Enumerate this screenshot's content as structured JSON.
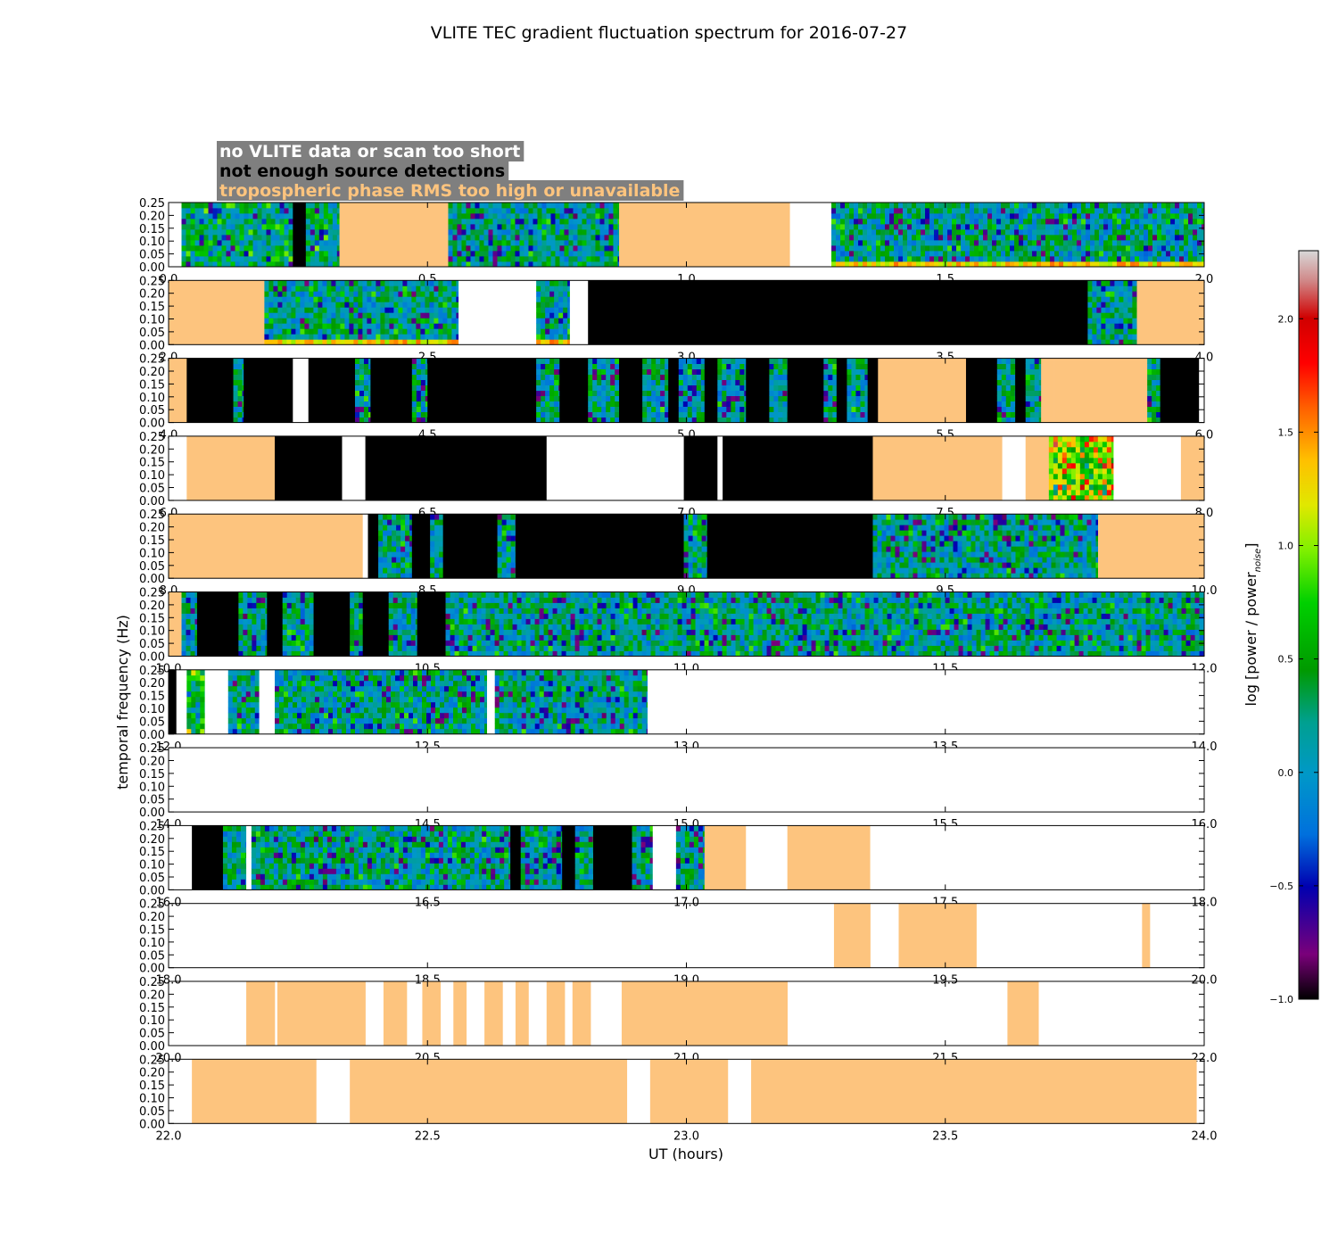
{
  "chart_data": {
    "type": "heatmap",
    "title": "VLITE TEC gradient fluctuation spectrum for 2016-07-27",
    "xlabel": "UT (hours)",
    "ylabel": "temporal frequency (Hz)",
    "ylim": [
      0.0,
      0.25
    ],
    "yticks": [
      "0.00",
      "0.05",
      "0.10",
      "0.15",
      "0.20",
      "0.25"
    ],
    "panel_hours": 2,
    "colorbar": {
      "label": "log [power / power",
      "label_sub": "noise",
      "label_end": "]",
      "range": [
        -1.0,
        2.3
      ],
      "ticks": [
        "2.0",
        "1.5",
        "1.0",
        "0.5",
        "0.0",
        "−0.5",
        "−1.0"
      ],
      "tick_values": [
        2.0,
        1.5,
        1.0,
        0.5,
        0.0,
        -0.5,
        -1.0
      ]
    },
    "legend": [
      {
        "label": "no VLITE data or scan too short",
        "text_color": "#ffffff"
      },
      {
        "label": "not enough source detections",
        "text_color": "#000000"
      },
      {
        "label": "tropospheric phase RMS too high or unavailable",
        "text_color": "#fdc47e"
      }
    ],
    "category_colors": {
      "no_data": "#ffffff",
      "few_detections": "#000000",
      "tropo": "#fdc47e"
    },
    "panels": [
      {
        "xlim": [
          0.0,
          2.0
        ],
        "xticks": [
          "0.0",
          "0.5",
          "1.0",
          "1.5",
          "2.0"
        ],
        "segments": [
          {
            "start": 0.0,
            "end": 0.025,
            "status": "no_data"
          },
          {
            "start": 0.025,
            "end": 0.24,
            "status": "data",
            "hot": 0.12
          },
          {
            "start": 0.24,
            "end": 0.265,
            "status": "few_detections"
          },
          {
            "start": 0.265,
            "end": 0.33,
            "status": "data",
            "hot": 0.12
          },
          {
            "start": 0.33,
            "end": 0.54,
            "status": "tropo"
          },
          {
            "start": 0.54,
            "end": 0.87,
            "status": "data"
          },
          {
            "start": 0.87,
            "end": 1.2,
            "status": "tropo"
          },
          {
            "start": 1.2,
            "end": 1.28,
            "status": "no_data"
          },
          {
            "start": 1.28,
            "end": 2.0,
            "status": "data",
            "bottom_band": true
          }
        ]
      },
      {
        "xlim": [
          2.0,
          4.0
        ],
        "xticks": [
          "2.0",
          "2.5",
          "3.0",
          "3.5",
          "4.0"
        ],
        "segments": [
          {
            "start": 2.0,
            "end": 2.185,
            "status": "tropo"
          },
          {
            "start": 2.185,
            "end": 2.56,
            "status": "data",
            "bottom_band": true
          },
          {
            "start": 2.56,
            "end": 2.71,
            "status": "no_data"
          },
          {
            "start": 2.71,
            "end": 2.775,
            "status": "data",
            "bottom_band": true
          },
          {
            "start": 2.775,
            "end": 2.81,
            "status": "no_data"
          },
          {
            "start": 2.81,
            "end": 3.775,
            "status": "few_detections"
          },
          {
            "start": 3.775,
            "end": 3.87,
            "status": "data"
          },
          {
            "start": 3.87,
            "end": 4.0,
            "status": "tropo"
          }
        ]
      },
      {
        "xlim": [
          4.0,
          6.0
        ],
        "xticks": [
          "4.0",
          "4.5",
          "5.0",
          "5.5",
          "6.0"
        ],
        "segments": [
          {
            "start": 4.0,
            "end": 4.035,
            "status": "tropo"
          },
          {
            "start": 4.035,
            "end": 4.125,
            "status": "few_detections"
          },
          {
            "start": 4.125,
            "end": 4.145,
            "status": "data"
          },
          {
            "start": 4.145,
            "end": 4.24,
            "status": "few_detections"
          },
          {
            "start": 4.24,
            "end": 4.27,
            "status": "no_data"
          },
          {
            "start": 4.27,
            "end": 4.36,
            "status": "few_detections"
          },
          {
            "start": 4.36,
            "end": 4.39,
            "status": "data"
          },
          {
            "start": 4.39,
            "end": 4.47,
            "status": "few_detections"
          },
          {
            "start": 4.47,
            "end": 4.5,
            "status": "data"
          },
          {
            "start": 4.5,
            "end": 4.71,
            "status": "few_detections"
          },
          {
            "start": 4.71,
            "end": 4.755,
            "status": "data"
          },
          {
            "start": 4.755,
            "end": 4.81,
            "status": "few_detections"
          },
          {
            "start": 4.81,
            "end": 4.87,
            "status": "data"
          },
          {
            "start": 4.87,
            "end": 4.915,
            "status": "few_detections"
          },
          {
            "start": 4.915,
            "end": 4.965,
            "status": "data"
          },
          {
            "start": 4.965,
            "end": 4.985,
            "status": "few_detections"
          },
          {
            "start": 4.985,
            "end": 5.035,
            "status": "data"
          },
          {
            "start": 5.035,
            "end": 5.06,
            "status": "few_detections"
          },
          {
            "start": 5.06,
            "end": 5.115,
            "status": "data"
          },
          {
            "start": 5.115,
            "end": 5.16,
            "status": "few_detections"
          },
          {
            "start": 5.16,
            "end": 5.195,
            "status": "data"
          },
          {
            "start": 5.195,
            "end": 5.265,
            "status": "few_detections"
          },
          {
            "start": 5.265,
            "end": 5.29,
            "status": "data"
          },
          {
            "start": 5.29,
            "end": 5.31,
            "status": "few_detections"
          },
          {
            "start": 5.31,
            "end": 5.35,
            "status": "data"
          },
          {
            "start": 5.35,
            "end": 5.37,
            "status": "few_detections"
          },
          {
            "start": 5.37,
            "end": 5.54,
            "status": "tropo"
          },
          {
            "start": 5.54,
            "end": 5.6,
            "status": "few_detections"
          },
          {
            "start": 5.6,
            "end": 5.635,
            "status": "data"
          },
          {
            "start": 5.635,
            "end": 5.655,
            "status": "few_detections"
          },
          {
            "start": 5.655,
            "end": 5.685,
            "status": "data"
          },
          {
            "start": 5.685,
            "end": 5.71,
            "status": "tropo"
          },
          {
            "start": 5.71,
            "end": 5.89,
            "status": "tropo"
          },
          {
            "start": 5.89,
            "end": 5.915,
            "status": "data"
          },
          {
            "start": 5.915,
            "end": 5.99,
            "status": "few_detections"
          },
          {
            "start": 5.99,
            "end": 6.0,
            "status": "no_data"
          }
        ]
      },
      {
        "xlim": [
          6.0,
          8.0
        ],
        "xticks": [
          "6.0",
          "6.5",
          "7.0",
          "7.5",
          "8.0"
        ],
        "segments": [
          {
            "start": 6.0,
            "end": 6.035,
            "status": "no_data"
          },
          {
            "start": 6.035,
            "end": 6.205,
            "status": "tropo"
          },
          {
            "start": 6.205,
            "end": 6.335,
            "status": "few_detections"
          },
          {
            "start": 6.335,
            "end": 6.38,
            "status": "no_data"
          },
          {
            "start": 6.38,
            "end": 6.73,
            "status": "few_detections"
          },
          {
            "start": 6.73,
            "end": 6.995,
            "status": "no_data"
          },
          {
            "start": 6.995,
            "end": 7.06,
            "status": "few_detections"
          },
          {
            "start": 7.06,
            "end": 7.07,
            "status": "no_data"
          },
          {
            "start": 7.07,
            "end": 7.36,
            "status": "few_detections"
          },
          {
            "start": 7.36,
            "end": 7.61,
            "status": "tropo"
          },
          {
            "start": 7.61,
            "end": 7.655,
            "status": "no_data"
          },
          {
            "start": 7.655,
            "end": 7.7,
            "status": "tropo"
          },
          {
            "start": 7.7,
            "end": 7.825,
            "status": "data",
            "hot": 0.9
          },
          {
            "start": 7.825,
            "end": 7.955,
            "status": "no_data"
          },
          {
            "start": 7.955,
            "end": 8.0,
            "status": "tropo"
          }
        ]
      },
      {
        "xlim": [
          8.0,
          10.0
        ],
        "xticks": [
          "8.0",
          "8.5",
          "9.0",
          "9.5",
          "10.0"
        ],
        "segments": [
          {
            "start": 8.0,
            "end": 8.375,
            "status": "tropo"
          },
          {
            "start": 8.375,
            "end": 8.385,
            "status": "no_data"
          },
          {
            "start": 8.385,
            "end": 8.405,
            "status": "few_detections"
          },
          {
            "start": 8.405,
            "end": 8.47,
            "status": "data"
          },
          {
            "start": 8.47,
            "end": 8.505,
            "status": "few_detections"
          },
          {
            "start": 8.505,
            "end": 8.53,
            "status": "data"
          },
          {
            "start": 8.53,
            "end": 8.635,
            "status": "few_detections"
          },
          {
            "start": 8.635,
            "end": 8.67,
            "status": "data"
          },
          {
            "start": 8.67,
            "end": 8.995,
            "status": "few_detections"
          },
          {
            "start": 8.995,
            "end": 9.04,
            "status": "data"
          },
          {
            "start": 9.04,
            "end": 9.36,
            "status": "few_detections"
          },
          {
            "start": 9.36,
            "end": 9.795,
            "status": "data"
          },
          {
            "start": 9.795,
            "end": 10.0,
            "status": "tropo"
          }
        ]
      },
      {
        "xlim": [
          10.0,
          12.0
        ],
        "xticks": [
          "10.0",
          "10.5",
          "11.0",
          "11.5",
          "12.0"
        ],
        "segments": [
          {
            "start": 10.0,
            "end": 10.025,
            "status": "tropo"
          },
          {
            "start": 10.025,
            "end": 10.055,
            "status": "data"
          },
          {
            "start": 10.055,
            "end": 10.135,
            "status": "few_detections"
          },
          {
            "start": 10.135,
            "end": 10.19,
            "status": "data"
          },
          {
            "start": 10.19,
            "end": 10.22,
            "status": "few_detections"
          },
          {
            "start": 10.22,
            "end": 10.28,
            "status": "data"
          },
          {
            "start": 10.28,
            "end": 10.35,
            "status": "few_detections"
          },
          {
            "start": 10.35,
            "end": 10.375,
            "status": "data"
          },
          {
            "start": 10.375,
            "end": 10.425,
            "status": "few_detections"
          },
          {
            "start": 10.425,
            "end": 10.48,
            "status": "data"
          },
          {
            "start": 10.48,
            "end": 10.535,
            "status": "few_detections"
          },
          {
            "start": 10.535,
            "end": 12.0,
            "status": "data"
          }
        ]
      },
      {
        "xlim": [
          12.0,
          14.0
        ],
        "xticks": [
          "12.0",
          "12.5",
          "13.0",
          "13.5",
          "14.0"
        ],
        "segments": [
          {
            "start": 12.0,
            "end": 12.015,
            "status": "few_detections"
          },
          {
            "start": 12.015,
            "end": 12.035,
            "status": "no_data"
          },
          {
            "start": 12.035,
            "end": 12.07,
            "status": "data",
            "hot": 0.3
          },
          {
            "start": 12.07,
            "end": 12.115,
            "status": "no_data"
          },
          {
            "start": 12.115,
            "end": 12.175,
            "status": "data"
          },
          {
            "start": 12.175,
            "end": 12.205,
            "status": "no_data"
          },
          {
            "start": 12.205,
            "end": 12.615,
            "status": "data"
          },
          {
            "start": 12.615,
            "end": 12.63,
            "status": "no_data"
          },
          {
            "start": 12.63,
            "end": 12.925,
            "status": "data"
          },
          {
            "start": 12.925,
            "end": 14.0,
            "status": "no_data"
          }
        ]
      },
      {
        "xlim": [
          14.0,
          16.0
        ],
        "xticks": [
          "14.0",
          "14.5",
          "15.0",
          "15.5",
          "16.0"
        ],
        "segments": [
          {
            "start": 14.0,
            "end": 16.0,
            "status": "no_data"
          }
        ]
      },
      {
        "xlim": [
          16.0,
          18.0
        ],
        "xticks": [
          "16.0",
          "16.5",
          "17.0",
          "17.5",
          "18.0"
        ],
        "segments": [
          {
            "start": 16.0,
            "end": 16.045,
            "status": "no_data"
          },
          {
            "start": 16.045,
            "end": 16.105,
            "status": "few_detections"
          },
          {
            "start": 16.105,
            "end": 16.15,
            "status": "data"
          },
          {
            "start": 16.15,
            "end": 16.16,
            "status": "no_data"
          },
          {
            "start": 16.16,
            "end": 16.605,
            "status": "data"
          },
          {
            "start": 16.605,
            "end": 16.66,
            "status": "data"
          },
          {
            "start": 16.66,
            "end": 16.68,
            "status": "few_detections"
          },
          {
            "start": 16.68,
            "end": 16.76,
            "status": "data"
          },
          {
            "start": 16.76,
            "end": 16.785,
            "status": "few_detections"
          },
          {
            "start": 16.785,
            "end": 16.82,
            "status": "data"
          },
          {
            "start": 16.82,
            "end": 16.895,
            "status": "few_detections"
          },
          {
            "start": 16.895,
            "end": 16.935,
            "status": "data"
          },
          {
            "start": 16.935,
            "end": 16.98,
            "status": "no_data"
          },
          {
            "start": 16.98,
            "end": 17.035,
            "status": "data"
          },
          {
            "start": 17.035,
            "end": 17.115,
            "status": "tropo"
          },
          {
            "start": 17.115,
            "end": 17.195,
            "status": "no_data"
          },
          {
            "start": 17.195,
            "end": 17.355,
            "status": "tropo"
          },
          {
            "start": 17.355,
            "end": 18.0,
            "status": "no_data"
          }
        ]
      },
      {
        "xlim": [
          18.0,
          20.0
        ],
        "xticks": [
          "18.0",
          "18.5",
          "19.0",
          "19.5",
          "20.0"
        ],
        "segments": [
          {
            "start": 19.285,
            "end": 19.355,
            "status": "tropo"
          },
          {
            "start": 19.41,
            "end": 19.56,
            "status": "tropo"
          },
          {
            "start": 19.88,
            "end": 19.895,
            "status": "tropo"
          }
        ]
      },
      {
        "xlim": [
          20.0,
          22.0
        ],
        "xticks": [
          "20.0",
          "20.5",
          "21.0",
          "21.5",
          "22.0"
        ],
        "segments": [
          {
            "start": 20.15,
            "end": 20.205,
            "status": "tropo"
          },
          {
            "start": 20.21,
            "end": 20.38,
            "status": "tropo"
          },
          {
            "start": 20.415,
            "end": 20.46,
            "status": "tropo"
          },
          {
            "start": 20.49,
            "end": 20.525,
            "status": "tropo"
          },
          {
            "start": 20.55,
            "end": 20.575,
            "status": "tropo"
          },
          {
            "start": 20.61,
            "end": 20.645,
            "status": "tropo"
          },
          {
            "start": 20.67,
            "end": 20.695,
            "status": "tropo"
          },
          {
            "start": 20.73,
            "end": 20.765,
            "status": "tropo"
          },
          {
            "start": 20.78,
            "end": 20.815,
            "status": "tropo"
          },
          {
            "start": 20.875,
            "end": 21.195,
            "status": "tropo"
          },
          {
            "start": 21.62,
            "end": 21.68,
            "status": "tropo"
          }
        ]
      },
      {
        "xlim": [
          22.0,
          24.0
        ],
        "xticks": [
          "22.0",
          "22.5",
          "23.0",
          "23.5",
          "24.0"
        ],
        "segments": [
          {
            "start": 22.045,
            "end": 22.285,
            "status": "tropo"
          },
          {
            "start": 22.35,
            "end": 22.885,
            "status": "tropo"
          },
          {
            "start": 22.93,
            "end": 23.08,
            "status": "tropo"
          },
          {
            "start": 23.125,
            "end": 23.985,
            "status": "tropo"
          }
        ]
      }
    ]
  }
}
